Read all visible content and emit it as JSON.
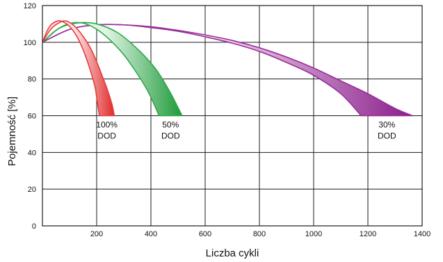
{
  "chart_data": {
    "type": "area",
    "xlabel": "Liczba cykli",
    "ylabel": "Pojemność [%]",
    "xlim": [
      0,
      1400
    ],
    "ylim": [
      0,
      120
    ],
    "x_ticks": [
      200,
      400,
      600,
      800,
      1000,
      1200,
      1400
    ],
    "y_ticks": [
      0,
      20,
      40,
      60,
      80,
      100,
      120
    ],
    "grid": true,
    "series": [
      {
        "label_lines": [
          "100%",
          "DOD"
        ],
        "color": "#e83a3a",
        "fill_light": "#fde6e6",
        "fill_dark": "#e02a2a",
        "lower_bound": [
          [
            0,
            100
          ],
          [
            20,
            107
          ],
          [
            40,
            110.5
          ],
          [
            70,
            111.5
          ],
          [
            110,
            107
          ],
          [
            150,
            96
          ],
          [
            190,
            78
          ],
          [
            200,
            70
          ],
          [
            210,
            60
          ]
        ],
        "upper_bound": [
          [
            0,
            100
          ],
          [
            30,
            107
          ],
          [
            60,
            110.5
          ],
          [
            90,
            111.5
          ],
          [
            130,
            107
          ],
          [
            180,
            96
          ],
          [
            230,
            78
          ],
          [
            255,
            67
          ],
          [
            265,
            60
          ]
        ]
      },
      {
        "label_lines": [
          "50%",
          "DOD"
        ],
        "color": "#2ea84a",
        "fill_light": "#e2f5e6",
        "fill_dark": "#1f9a3a",
        "lower_bound": [
          [
            0,
            100
          ],
          [
            60,
            107.5
          ],
          [
            110,
            110.5
          ],
          [
            160,
            110
          ],
          [
            220,
            105
          ],
          [
            290,
            95
          ],
          [
            340,
            85
          ],
          [
            390,
            73
          ],
          [
            430,
            60
          ]
        ],
        "upper_bound": [
          [
            0,
            100
          ],
          [
            60,
            107.5
          ],
          [
            130,
            110.5
          ],
          [
            200,
            110
          ],
          [
            280,
            105
          ],
          [
            360,
            95
          ],
          [
            420,
            85
          ],
          [
            470,
            73
          ],
          [
            515,
            60
          ]
        ]
      },
      {
        "label_lines": [
          "30%",
          "DOD"
        ],
        "color": "#9a2a9a",
        "fill_light": "#f3e4f3",
        "fill_dark": "#8a1e8a",
        "lower_bound": [
          [
            0,
            100
          ],
          [
            100,
            107
          ],
          [
            200,
            109.5
          ],
          [
            300,
            109.5
          ],
          [
            400,
            108
          ],
          [
            500,
            106
          ],
          [
            600,
            103
          ],
          [
            700,
            99.5
          ],
          [
            800,
            95
          ],
          [
            900,
            89
          ],
          [
            1000,
            82
          ],
          [
            1100,
            72
          ],
          [
            1175,
            60
          ]
        ],
        "upper_bound": [
          [
            0,
            100
          ],
          [
            100,
            107
          ],
          [
            200,
            109.5
          ],
          [
            300,
            109.5
          ],
          [
            400,
            108.5
          ],
          [
            500,
            106.5
          ],
          [
            600,
            104
          ],
          [
            700,
            101
          ],
          [
            800,
            97
          ],
          [
            900,
            92
          ],
          [
            1000,
            86
          ],
          [
            1100,
            79
          ],
          [
            1200,
            72
          ],
          [
            1300,
            64
          ],
          [
            1365,
            60
          ]
        ]
      }
    ]
  }
}
